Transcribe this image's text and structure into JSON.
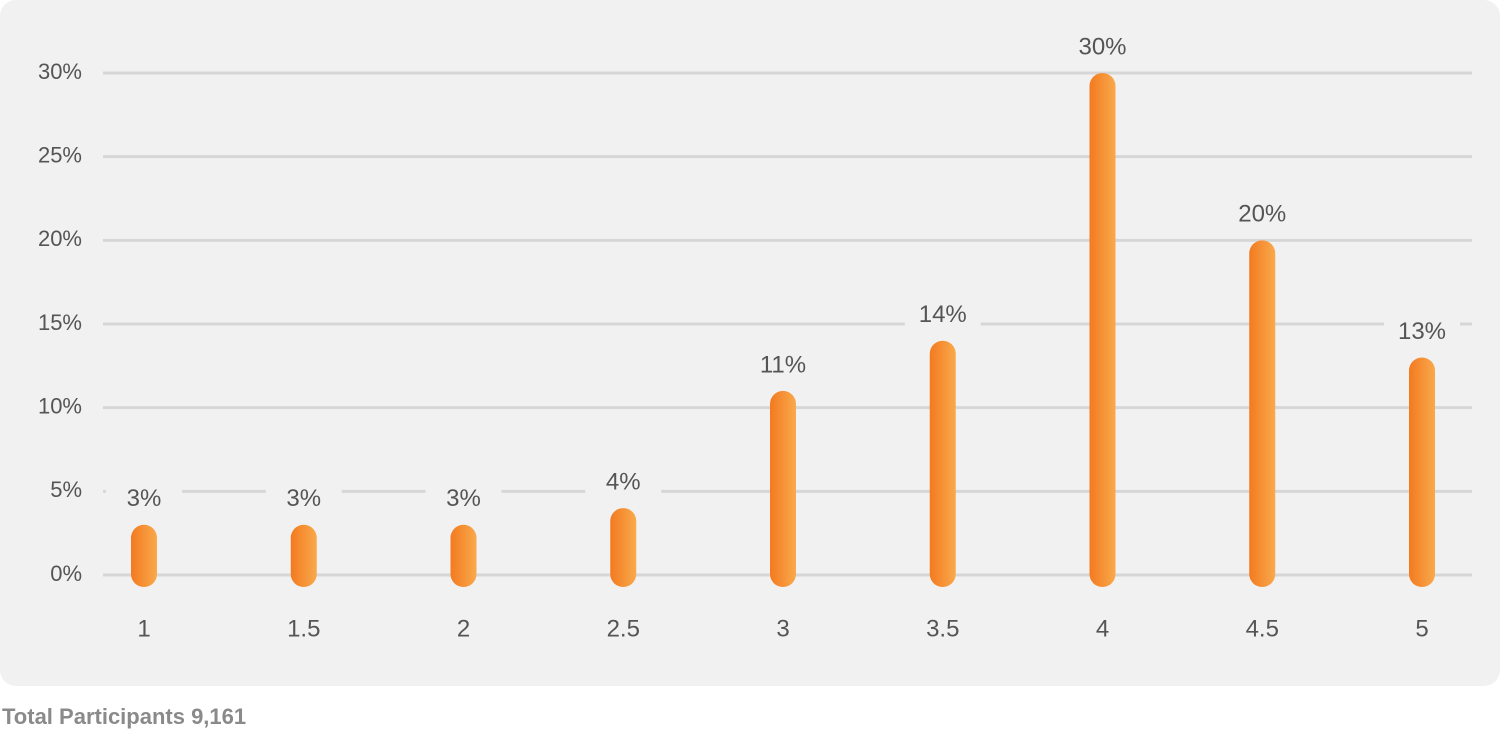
{
  "chart_data": {
    "type": "bar",
    "categories": [
      "1",
      "1.5",
      "2",
      "2.5",
      "3",
      "3.5",
      "4",
      "4.5",
      "5"
    ],
    "values": [
      3,
      3,
      3,
      4,
      11,
      14,
      30,
      20,
      13
    ],
    "value_labels": [
      "3%",
      "3%",
      "3%",
      "4%",
      "11%",
      "14%",
      "30%",
      "20%",
      "13%"
    ],
    "color": "#f58426",
    "ylim": [
      0,
      30
    ],
    "yticks": [
      {
        "value": 0,
        "label": "0%"
      },
      {
        "value": 5,
        "label": "5%"
      },
      {
        "value": 10,
        "label": "10%"
      },
      {
        "value": 15,
        "label": "15%"
      },
      {
        "value": 20,
        "label": "20%"
      },
      {
        "value": 25,
        "label": "25%"
      },
      {
        "value": 30,
        "label": "30%"
      }
    ],
    "grid": true,
    "caption": "Total Participants 9,161"
  }
}
